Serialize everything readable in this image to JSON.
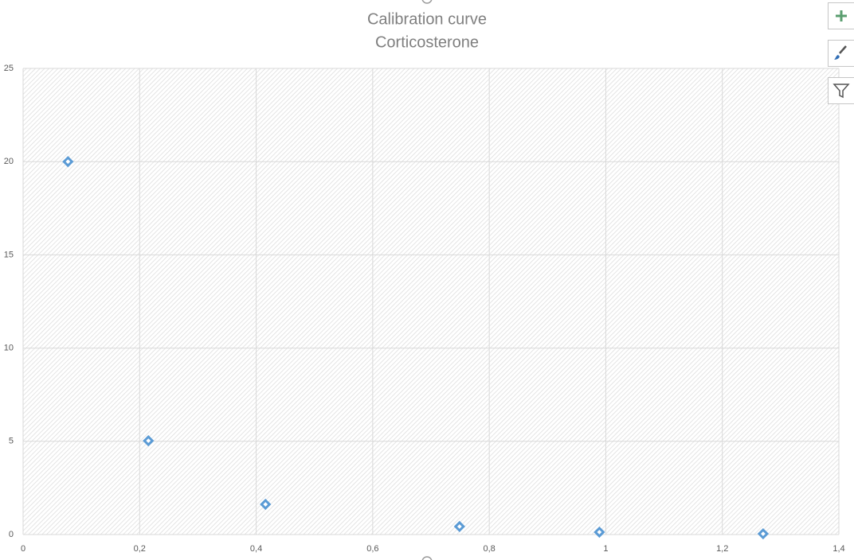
{
  "chart_data": {
    "type": "scatter",
    "title": "Calibration curve",
    "subtitle": "Corticosterone",
    "series": [
      {
        "color": "#5b9bd5",
        "x": [
          0.077,
          0.215,
          0.416,
          0.749,
          0.989,
          1.27
        ],
        "values": [
          20.0,
          5.03,
          1.62,
          0.43,
          0.13,
          0.04
        ]
      }
    ],
    "xlim": [
      0,
      1.4
    ],
    "xticks": [
      0,
      {
        "value": 0.2,
        "label": "0,2"
      },
      {
        "value": 0.4,
        "label": "0,4"
      },
      {
        "value": 0.6,
        "label": "0,6"
      },
      {
        "value": 0.8,
        "label": "0,8"
      },
      1,
      {
        "value": 1.2,
        "label": "1,2"
      },
      {
        "value": 1.4,
        "label": "1,4"
      }
    ],
    "ylim": [
      0,
      25
    ],
    "yticks": [
      0,
      5,
      10,
      15,
      20,
      25
    ],
    "grid": true
  }
}
